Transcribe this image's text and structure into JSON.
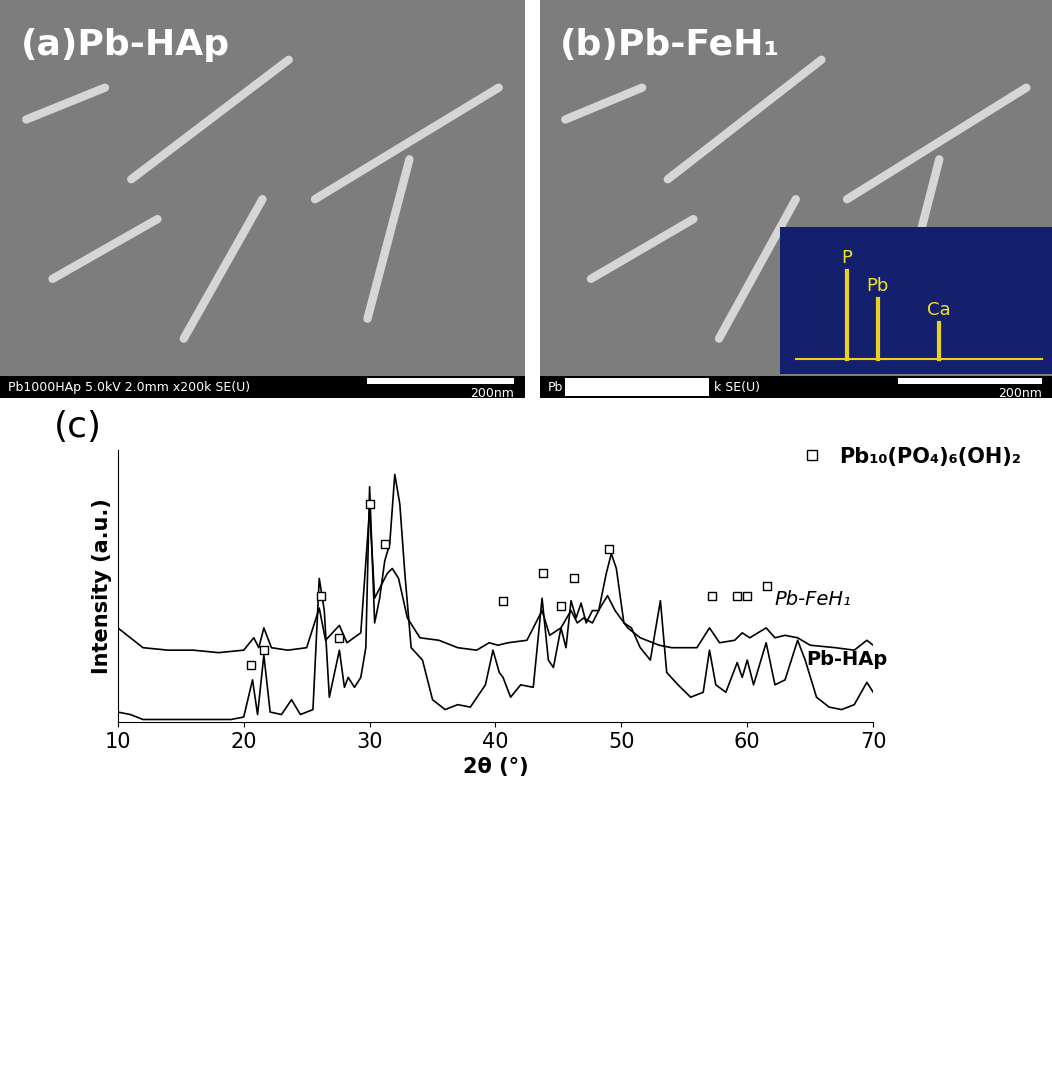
{
  "images": [
    {
      "label": "(a)Pb-HAp",
      "footer": "Pb1000HAp 5.0kV 2.0mm x200k SE(U)",
      "scale_bar": "200nm"
    },
    {
      "label": "(b)Pb-FeH₁",
      "footer": "Pb",
      "footer_end": "k SE(U)",
      "scale_bar": "200nm",
      "inset_labels": [
        "P",
        "Pb",
        "Ca"
      ]
    }
  ],
  "chart_data": {
    "type": "line",
    "title": "(c)",
    "x_label": "2θ (°)",
    "y_label": "Intensity (a.u.)",
    "xlim": [
      10,
      70
    ],
    "xticks": [
      10,
      20,
      30,
      40,
      50,
      60,
      70
    ],
    "ylim": [
      0,
      110
    ],
    "yticks": [],
    "tick_labels": "x",
    "legend": "upper right",
    "series": [
      {
        "name": "Pb-FeH₁",
        "color": "#000000",
        "x": [
          10,
          11,
          12,
          14,
          16,
          18,
          20,
          20.8,
          21.2,
          21.6,
          22.2,
          23.5,
          25,
          26.0,
          26.5,
          27.6,
          28.2,
          29.3,
          30.0,
          30.4,
          30.9,
          31.4,
          31.8,
          32.3,
          33,
          34,
          35.5,
          37,
          38.5,
          39.5,
          40.2,
          41,
          42.5,
          43.7,
          44.3,
          45.2,
          46.0,
          46.5,
          47.0,
          47.7,
          48.3,
          48.9,
          49.5,
          50.5,
          51.5,
          53.0,
          54,
          56,
          57.0,
          57.8,
          59,
          59.6,
          60.2,
          61.5,
          62.2,
          63,
          64,
          65,
          67,
          68.5,
          69.5,
          70
        ],
        "values": [
          38,
          34,
          30,
          29,
          29,
          28,
          29,
          34,
          30,
          38,
          30,
          29,
          30,
          46,
          33,
          39,
          32,
          36,
          86,
          50,
          55,
          60,
          62,
          58,
          42,
          34,
          33,
          30,
          29,
          32,
          31,
          32,
          33,
          45,
          35,
          38,
          45,
          40,
          42,
          40,
          46,
          51,
          45,
          38,
          34,
          31,
          30,
          30,
          38,
          32,
          33,
          36,
          34,
          38,
          34,
          35,
          34,
          31,
          30,
          29,
          33,
          31
        ]
      },
      {
        "name": "Pb-HAp",
        "color": "#000000",
        "x": [
          10,
          11,
          12,
          14,
          16,
          18,
          19,
          20,
          20.7,
          21.1,
          21.6,
          22.1,
          23,
          23.8,
          24.5,
          25.5,
          26.0,
          26.4,
          26.8,
          27.6,
          28.0,
          28.3,
          28.8,
          29.3,
          29.7,
          30.0,
          30.4,
          30.8,
          31.2,
          31.6,
          32.0,
          32.4,
          32.8,
          33.3,
          34.2,
          35,
          36,
          37,
          38,
          39.2,
          39.8,
          40.3,
          40.6,
          41.2,
          42,
          43,
          43.7,
          44.2,
          44.6,
          45.2,
          45.6,
          46.0,
          46.4,
          46.8,
          47.2,
          47.7,
          48.2,
          48.8,
          49.2,
          49.6,
          50.2,
          50.8,
          51.5,
          52.3,
          53.1,
          53.6,
          54.5,
          55.5,
          56.5,
          57.0,
          57.5,
          58.3,
          59.2,
          59.6,
          60.0,
          60.5,
          61.5,
          62.2,
          63,
          64.0,
          64.6,
          65.5,
          66.5,
          67.5,
          68.5,
          69.5,
          70
        ],
        "values": [
          4,
          3,
          1,
          1,
          1,
          1,
          1,
          2,
          17,
          3,
          27,
          4,
          3,
          9,
          3,
          5,
          58,
          45,
          10,
          29,
          14,
          18,
          14,
          18,
          30,
          95,
          40,
          50,
          65,
          72,
          100,
          88,
          60,
          30,
          25,
          9,
          5,
          7,
          6,
          15,
          29,
          20,
          18,
          10,
          15,
          14,
          50,
          25,
          22,
          38,
          30,
          49,
          42,
          48,
          40,
          45,
          45,
          60,
          68,
          62,
          40,
          38,
          30,
          25,
          49,
          20,
          15,
          10,
          12,
          29,
          15,
          12,
          24,
          18,
          25,
          15,
          32,
          15,
          17,
          33,
          25,
          10,
          6,
          5,
          7,
          16,
          12
        ]
      },
      {
        "name": "Pb₁₀(PO₄)₆(OH)₂",
        "type": "scatter",
        "marker": "square",
        "color": "#000000",
        "x": [
          20.6,
          21.6,
          26.1,
          27.6,
          30.0,
          31.2,
          40.6,
          43.8,
          45.2,
          46.2,
          49.0,
          57.2,
          59.2,
          60.0,
          61.6
        ],
        "values": [
          23,
          29,
          51,
          34,
          88,
          72,
          49,
          60,
          47,
          58,
          70,
          51,
          51,
          51,
          55
        ]
      }
    ]
  }
}
